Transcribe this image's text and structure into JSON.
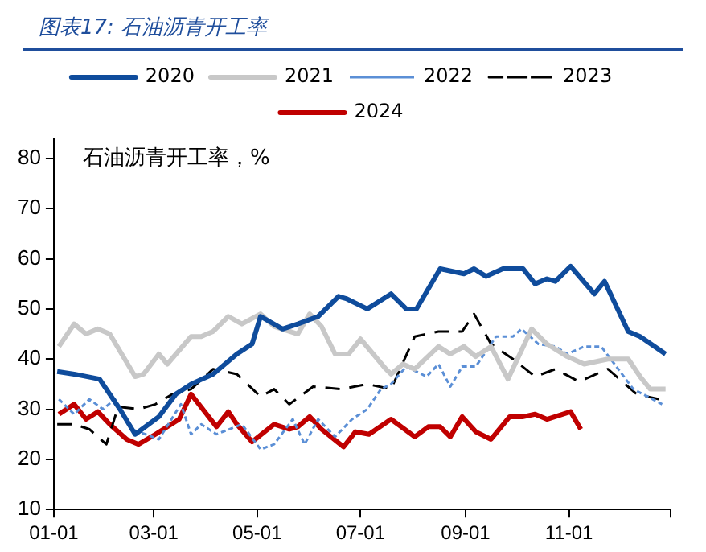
{
  "chart_data": {
    "type": "line",
    "title": "图表17: 石油沥青开工率",
    "ylabel": "石油沥青开工率，%",
    "xlim": [
      "--01-01",
      "--12-31"
    ],
    "xticks": [
      {
        "value": "--01-01",
        "label": "01-01"
      },
      {
        "value": "--03-01",
        "label": "03-01"
      },
      {
        "value": "--05-01",
        "label": "05-01"
      },
      {
        "value": "--07-01",
        "label": "07-01"
      },
      {
        "value": "--09-01",
        "label": "09-01"
      },
      {
        "value": "--11-01",
        "label": "11-01"
      },
      {
        "value": "--12-31",
        "label": null
      }
    ],
    "ylim": [
      10,
      84
    ],
    "yticks": [
      10,
      20,
      30,
      40,
      50,
      60,
      70,
      80
    ],
    "grid": false,
    "legend": "top",
    "marker": "none",
    "series": [
      {
        "name": "2020",
        "color": "#0f4c9c",
        "line_style": "solid",
        "x": [
          "--01-03",
          "--01-13",
          "--01-28",
          "--02-09",
          "--02-18",
          "--03-04",
          "--03-14",
          "--03-23",
          "--04-05",
          "--04-19",
          "--04-28",
          "--05-03",
          "--05-16",
          "--05-25",
          "--06-06",
          "--06-18",
          "--06-23",
          "--07-05",
          "--07-19",
          "--07-28",
          "--08-03",
          "--08-17",
          "--08-31",
          "--09-06",
          "--09-13",
          "--09-23",
          "--10-05",
          "--10-12",
          "--10-19",
          "--10-24",
          "--11-02",
          "--11-16",
          "--11-22",
          "--12-06",
          "--12-13",
          "--12-28"
        ],
        "values": [
          37.5,
          37,
          36,
          30,
          25,
          28.5,
          33,
          35,
          37,
          41,
          43,
          48.5,
          46,
          47,
          48.5,
          52.5,
          52,
          50,
          53,
          50,
          50,
          58,
          57,
          58,
          56.5,
          58,
          58,
          55,
          56,
          55.5,
          58.5,
          53,
          55.5,
          45.5,
          44.5,
          41
        ]
      },
      {
        "name": "2021",
        "color": "#c8c8c8",
        "line_style": "solid",
        "x": [
          "--01-04",
          "--01-13",
          "--01-20",
          "--01-27",
          "--02-03",
          "--02-18",
          "--02-23",
          "--03-04",
          "--03-09",
          "--03-23",
          "--03-29",
          "--04-05",
          "--04-14",
          "--04-22",
          "--05-03",
          "--05-11",
          "--05-25",
          "--06-01",
          "--06-08",
          "--06-16",
          "--06-24",
          "--07-01",
          "--07-16",
          "--07-19",
          "--07-26",
          "--08-02",
          "--08-16",
          "--08-23",
          "--08-31",
          "--09-07",
          "--09-16",
          "--09-26",
          "--10-10",
          "--10-19",
          "--10-31",
          "--11-10",
          "--11-24",
          "--12-06",
          "--12-13",
          "--12-19",
          "--12-28"
        ],
        "values": [
          42.5,
          47,
          45,
          46,
          45,
          36.5,
          37,
          41,
          39,
          44.5,
          44.5,
          45.5,
          48.5,
          47,
          49,
          46.5,
          45,
          49,
          46.5,
          41,
          41,
          44,
          38,
          37,
          39,
          38,
          42.5,
          41,
          42.5,
          40.5,
          42.5,
          36,
          46,
          43,
          40.5,
          39,
          40,
          40,
          36.5,
          34,
          34
        ]
      },
      {
        "name": "2022",
        "color": "#5b8fd6",
        "line_style": "dotted",
        "x": [
          "--01-04",
          "--01-13",
          "--01-22",
          "--01-30",
          "--02-06",
          "--02-16",
          "--03-04",
          "--03-17",
          "--03-23",
          "--03-29",
          "--04-07",
          "--04-22",
          "--05-03",
          "--05-11",
          "--05-22",
          "--05-29",
          "--06-06",
          "--06-16",
          "--06-26",
          "--07-05",
          "--07-13",
          "--07-19",
          "--07-28",
          "--08-09",
          "--08-16",
          "--08-23",
          "--08-30",
          "--09-07",
          "--09-19",
          "--09-29",
          "--10-04",
          "--10-14",
          "--10-24",
          "--10-31",
          "--11-10",
          "--11-20",
          "--11-29",
          "--12-09",
          "--12-26"
        ],
        "values": [
          32,
          29,
          32,
          30,
          32,
          26,
          24,
          31,
          25,
          27,
          25,
          27,
          22,
          23,
          28,
          23,
          28,
          24.5,
          28,
          30,
          34,
          35,
          38.5,
          36.5,
          39,
          34.5,
          38.5,
          38.5,
          44.5,
          44.5,
          46,
          43,
          42.5,
          41,
          42.5,
          42.5,
          38.5,
          34,
          31
        ]
      },
      {
        "name": "2023",
        "color": "#000000",
        "line_style": "dashed",
        "x": [
          "--01-03",
          "--01-13",
          "--01-22",
          "--02-01",
          "--02-08",
          "--02-20",
          "--03-02",
          "--03-12",
          "--03-23",
          "--04-05",
          "--04-19",
          "--05-03",
          "--05-11",
          "--05-20",
          "--06-03",
          "--06-20",
          "--07-05",
          "--07-19",
          "--08-02",
          "--08-16",
          "--08-30",
          "--09-06",
          "--09-16",
          "--09-29",
          "--10-12",
          "--10-24",
          "--11-07",
          "--11-24",
          "--12-11",
          "--12-24"
        ],
        "values": [
          27,
          27,
          26,
          23,
          30.5,
          30,
          31,
          33,
          34,
          38,
          37,
          32.5,
          34,
          31,
          34.5,
          34,
          35,
          34,
          44.5,
          45.5,
          45.5,
          49,
          43,
          40,
          36.5,
          38,
          35.5,
          38,
          33,
          32
        ]
      },
      {
        "name": "2024",
        "color": "#c00000",
        "line_style": "solid",
        "x": [
          "--01-04",
          "--01-13",
          "--01-20",
          "--01-27",
          "--02-03",
          "--02-13",
          "--02-20",
          "--03-02",
          "--03-16",
          "--03-23",
          "--04-07",
          "--04-14",
          "--04-19",
          "--04-28",
          "--05-11",
          "--05-20",
          "--05-25",
          "--06-01",
          "--06-08",
          "--06-21",
          "--06-28",
          "--07-06",
          "--07-19",
          "--08-02",
          "--08-10",
          "--08-17",
          "--08-23",
          "--08-30",
          "--09-07",
          "--09-16",
          "--09-27",
          "--10-05",
          "--10-12",
          "--10-19",
          "--11-02",
          "--11-08"
        ],
        "values": [
          29,
          31,
          28,
          29.5,
          27,
          24,
          23,
          25,
          28,
          33,
          26.5,
          29.5,
          27,
          23.5,
          27,
          26,
          26.5,
          28.5,
          26,
          22.5,
          25.5,
          25,
          28,
          24.5,
          26.5,
          26.5,
          24.5,
          28.5,
          25.5,
          24,
          28.5,
          28.5,
          29,
          28,
          29.5,
          26
        ]
      }
    ]
  }
}
